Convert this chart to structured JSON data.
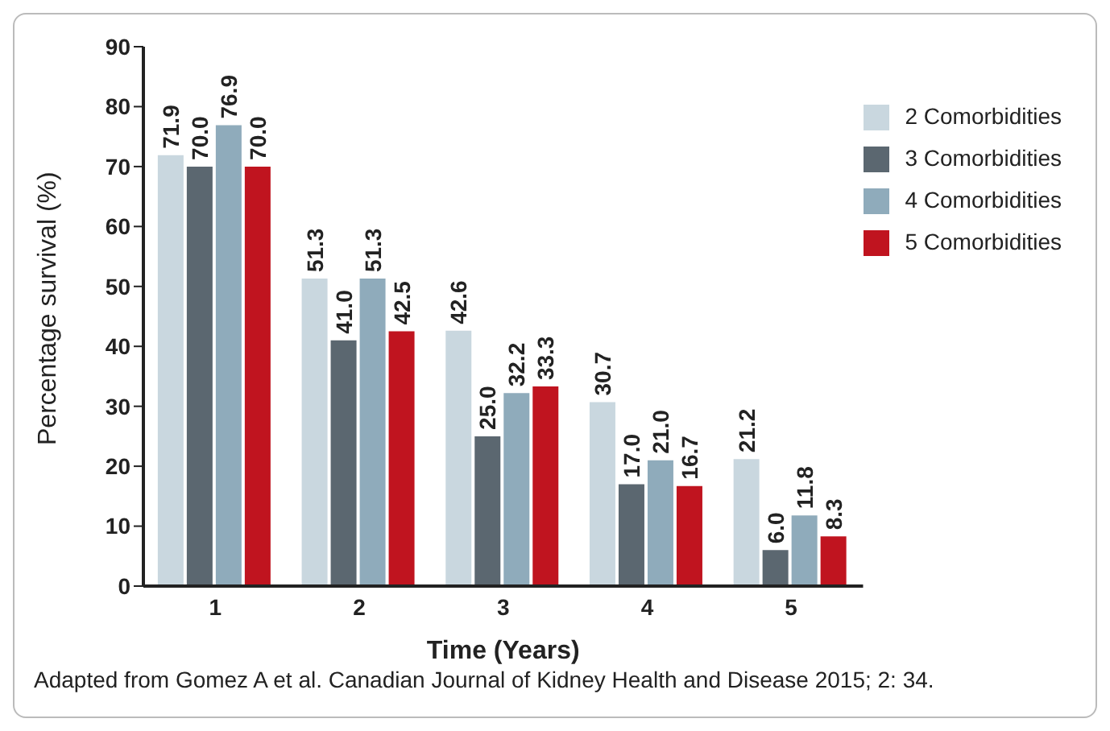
{
  "chart_data": {
    "type": "bar",
    "xlabel": "Time (Years)",
    "ylabel": "Percentage survival (%)",
    "categories": [
      "1",
      "2",
      "3",
      "4",
      "5"
    ],
    "series": [
      {
        "name": "2 Comorbidities",
        "color": "#c9d7df",
        "values": [
          71.9,
          51.3,
          42.6,
          30.7,
          21.2
        ],
        "value_labels": [
          "71.9",
          "51.3",
          "42.6",
          "30.7",
          "21.2"
        ]
      },
      {
        "name": "3 Comorbidities",
        "color": "#5b6770",
        "values": [
          70.0,
          41.0,
          25.0,
          17.0,
          6.0
        ],
        "value_labels": [
          "70.0",
          "41.0",
          "25.0",
          "17.0",
          "6.0"
        ]
      },
      {
        "name": "4 Comorbidities",
        "color": "#8fabbb",
        "values": [
          76.9,
          51.3,
          32.2,
          21.0,
          11.8
        ],
        "value_labels": [
          "76.9",
          "51.3",
          "32.2",
          "21.0",
          "11.8"
        ]
      },
      {
        "name": "5 Comorbidities",
        "color": "#c0141f",
        "values": [
          70.0,
          42.5,
          33.3,
          16.7,
          8.3
        ],
        "value_labels": [
          "70.0",
          "42.5",
          "33.3",
          "16.7",
          "8.3"
        ]
      }
    ],
    "ylim": [
      0,
      90
    ],
    "yticks": [
      0,
      10,
      20,
      30,
      40,
      50,
      60,
      70,
      80,
      90
    ],
    "grid": false,
    "legend": "top right",
    "annotations": [
      "Adapted from Gomez A et al. Canadian Journal of Kidney Health and Disease 2015; 2: 34."
    ]
  }
}
